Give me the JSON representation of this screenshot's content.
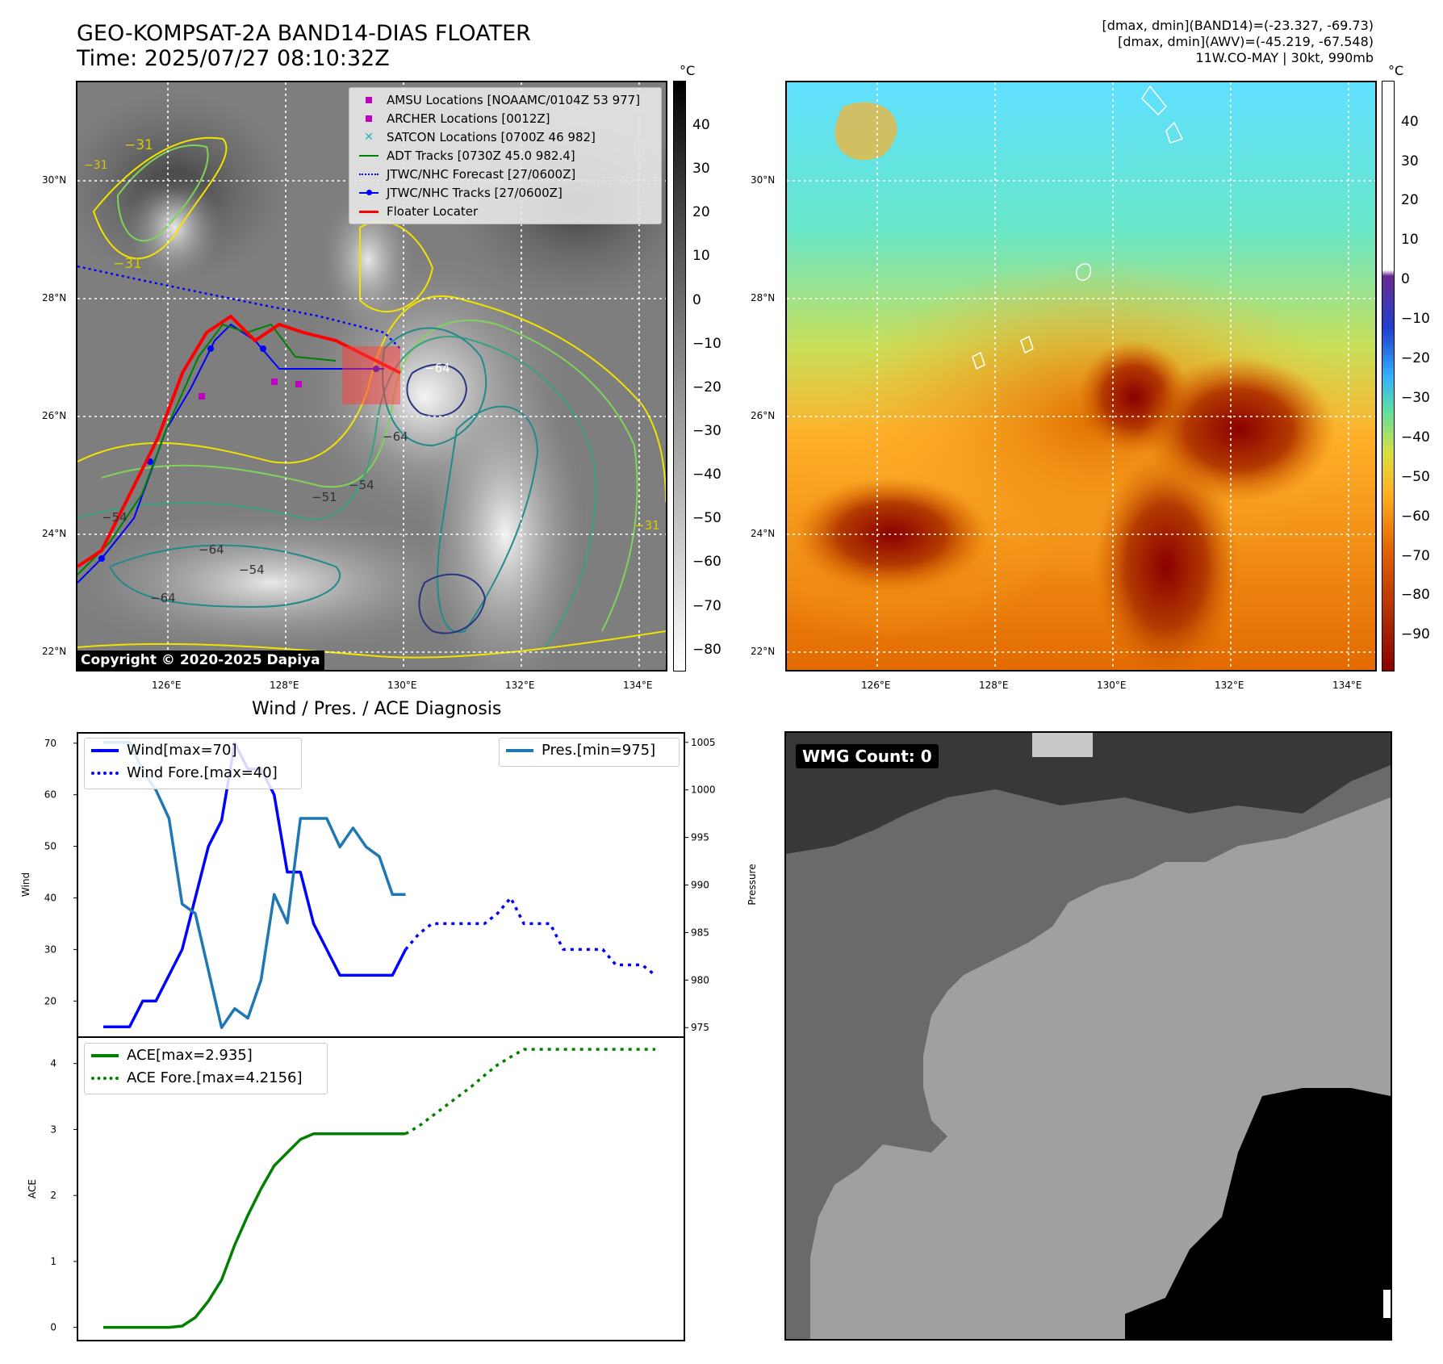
{
  "header": {
    "title_line1": "GEO-KOMPSAT-2A BAND14-DIAS FLOATER",
    "title_line2": "Time: 2025/07/27 08:10:32Z",
    "stats_line1": "[dmax, dmin](BAND14)=(-23.327, -69.73)",
    "stats_line2": "[dmax, dmin](AWV)=(-45.219, -67.548)",
    "stats_line3": "11W.CO-MAY | 30kt, 990mb"
  },
  "map_axes": {
    "lat_labels": [
      "30°N",
      "28°N",
      "26°N",
      "24°N",
      "22°N"
    ],
    "lon_labels": [
      "126°E",
      "128°E",
      "130°E",
      "132°E",
      "134°E"
    ]
  },
  "ir_panel": {
    "colorbar_unit": "°C",
    "colorbar_ticks": [
      "40",
      "30",
      "20",
      "10",
      "0",
      "−10",
      "−20",
      "−30",
      "−40",
      "−50",
      "−60",
      "−70",
      "−80"
    ],
    "contour_labels": [
      "−31",
      "−31",
      "−31",
      "−64",
      "−64",
      "−54",
      "−51",
      "−54",
      "−64",
      "−64",
      "−54",
      "−31"
    ],
    "legend": [
      {
        "label": "AMSU Locations [NOAAMC/0104Z 53 977]",
        "color": "#c000c0",
        "marker": "square"
      },
      {
        "label": "ARCHER Locations [0012Z]",
        "color": "#c000c0",
        "marker": "square"
      },
      {
        "label": "SATCON Locations [0700Z 46 982]",
        "color": "#1fb5b5",
        "marker": "x"
      },
      {
        "label": "ADT Tracks [0730Z 45.0 982.4]",
        "color": "#008000",
        "marker": "line"
      },
      {
        "label": "JTWC/NHC Forecast [27/0600Z]",
        "color": "#0000ff",
        "marker": "dotted"
      },
      {
        "label": "JTWC/NHC Tracks [27/0600Z]",
        "color": "#0000ff",
        "marker": "line-dot"
      },
      {
        "label": "Floater Locater",
        "color": "#ff0000",
        "marker": "line"
      }
    ],
    "copyright": "Copyright © 2020-2025 Dapiya"
  },
  "wv_panel": {
    "colorbar_unit": "°C",
    "colorbar_ticks": [
      "40",
      "30",
      "20",
      "10",
      "0",
      "−10",
      "−20",
      "−30",
      "−40",
      "−50",
      "−60",
      "−70",
      "−80",
      "−90"
    ]
  },
  "diagnosis": {
    "title": "Wind / Pres. / ACE Diagnosis",
    "wind_axis_label": "Wind",
    "pressure_axis_label": "Pressure",
    "ace_axis_label": "ACE",
    "legend_wind": "Wind[max=70]",
    "legend_wind_fore": "Wind Fore.[max=40]",
    "legend_pres": "Pres.[min=975]",
    "legend_ace": "ACE[max=2.935]",
    "legend_ace_fore": "ACE Fore.[max=4.2156]"
  },
  "wmg_panel": {
    "label": "WMG Count: 0"
  },
  "chart_data": [
    {
      "type": "line",
      "title": "Wind / Pres. / ACE Diagnosis",
      "ylabel": "Wind",
      "ylim": [
        13,
        72
      ],
      "y_ticks": [
        20,
        30,
        40,
        50,
        60,
        70
      ],
      "series": [
        {
          "name": "Wind[max=70]",
          "color": "#0000ff",
          "style": "solid",
          "x": [
            0,
            1,
            2,
            3,
            4,
            5,
            6,
            7,
            8,
            9,
            10,
            11,
            12,
            13,
            14,
            15,
            16,
            17,
            18,
            19,
            20,
            21,
            22,
            23
          ],
          "values": [
            15,
            15,
            15,
            20,
            20,
            25,
            30,
            40,
            50,
            55,
            70,
            65,
            65,
            60,
            45,
            45,
            35,
            30,
            25,
            25,
            25,
            25,
            25,
            30
          ]
        },
        {
          "name": "Wind Fore.[max=40]",
          "color": "#0000ff",
          "style": "dotted",
          "x": [
            23,
            24,
            25,
            26,
            27,
            28,
            29,
            30,
            31,
            32,
            33,
            34,
            35,
            36,
            37,
            38,
            39,
            40,
            41,
            42
          ],
          "values": [
            30,
            33,
            35,
            35,
            35,
            35,
            35,
            37,
            40,
            35,
            35,
            35,
            30,
            30,
            30,
            30,
            27,
            27,
            27,
            25
          ]
        }
      ]
    },
    {
      "type": "line",
      "ylabel": "Pressure",
      "ylim": [
        974,
        1006
      ],
      "y_ticks": [
        975,
        980,
        985,
        990,
        995,
        1000,
        1005
      ],
      "series": [
        {
          "name": "Pres.[min=975]",
          "color": "#1f77b4",
          "style": "solid",
          "x": [
            0,
            1,
            2,
            3,
            4,
            5,
            6,
            7,
            8,
            9,
            10,
            11,
            12,
            13,
            14,
            15,
            16,
            17,
            18,
            19,
            20,
            21,
            22,
            23
          ],
          "values": [
            1005,
            1005,
            1005,
            1002,
            1000,
            997,
            988,
            987,
            981,
            975,
            977,
            976,
            980,
            989,
            986,
            997,
            997,
            997,
            994,
            996,
            994,
            993,
            989,
            989
          ]
        }
      ]
    },
    {
      "type": "line",
      "ylabel": "ACE",
      "ylim": [
        -0.2,
        4.4
      ],
      "y_ticks": [
        0,
        1,
        2,
        3,
        4
      ],
      "series": [
        {
          "name": "ACE[max=2.935]",
          "color": "#008000",
          "style": "solid",
          "x": [
            0,
            1,
            2,
            3,
            4,
            5,
            6,
            7,
            8,
            9,
            10,
            11,
            12,
            13,
            14,
            15,
            16,
            17,
            18,
            19,
            20,
            21,
            22,
            23
          ],
          "values": [
            0,
            0,
            0,
            0,
            0,
            0,
            0.02,
            0.15,
            0.4,
            0.72,
            1.25,
            1.7,
            2.1,
            2.45,
            2.65,
            2.85,
            2.935,
            2.935,
            2.935,
            2.935,
            2.935,
            2.935,
            2.935,
            2.935
          ]
        },
        {
          "name": "ACE Fore.[max=4.2156]",
          "color": "#008000",
          "style": "dotted",
          "x": [
            23,
            24,
            25,
            26,
            27,
            28,
            29,
            30,
            31,
            32,
            33,
            34,
            35,
            36,
            37,
            38,
            39,
            40,
            41,
            42
          ],
          "values": [
            2.935,
            3.05,
            3.2,
            3.35,
            3.5,
            3.65,
            3.82,
            3.98,
            4.1,
            4.2156,
            4.2156,
            4.2156,
            4.2156,
            4.2156,
            4.2156,
            4.2156,
            4.2156,
            4.2156,
            4.2156,
            4.2156
          ]
        }
      ]
    }
  ]
}
